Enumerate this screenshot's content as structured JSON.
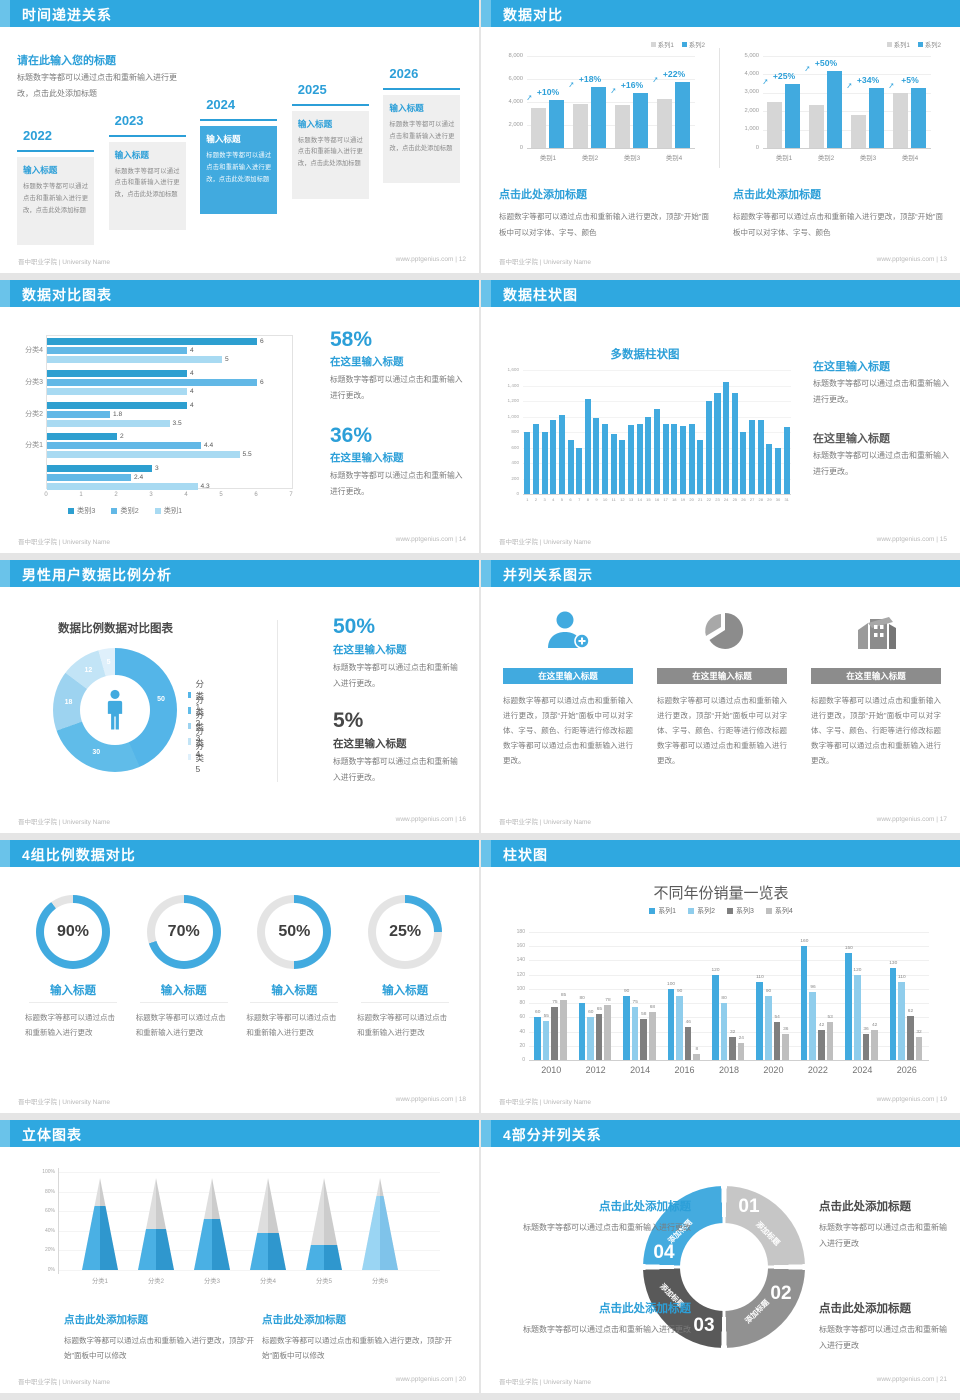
{
  "footer": {
    "org": "晋中职业学院 | University Name",
    "site": "www.pptgenius.com"
  },
  "slides": {
    "timeline": {
      "header": "时间递进关系",
      "footer_right": "www.pptgenius.com | 12",
      "page_no": "12",
      "intro_title": "请在此输入您的标题",
      "intro_text": "标题数字等都可以通过点击和重新输入进行更改，点击此处添加标题",
      "card_title": "输入标题",
      "card_text": "标题数字等都可以通过点击和重新输入进行更改，点击此处添加标题",
      "years": [
        "2022",
        "2023",
        "2024",
        "2025",
        "2026"
      ],
      "highlight_index": 2
    },
    "compare": {
      "header": "数据对比",
      "footer_right": "www.pptgenius.com | 13",
      "page_no": "13",
      "legend": [
        "系列1",
        "系列2"
      ],
      "charts": [
        {
          "type": "bar",
          "categories": [
            "类别1",
            "类别2",
            "类别3",
            "类别4"
          ],
          "ymax": 8000,
          "yticks": [
            "8,000",
            "6,000",
            "4,000",
            "2,000",
            "0"
          ],
          "series": [
            {
              "name": "系列1",
              "values": [
                3500,
                3800,
                3700,
                4300
              ]
            },
            {
              "name": "系列2",
              "values": [
                4200,
                5300,
                4800,
                5700
              ]
            }
          ],
          "growth": [
            "+10%",
            "+18%",
            "+16%",
            "+22%"
          ]
        },
        {
          "type": "bar",
          "categories": [
            "类别1",
            "类别2",
            "类别3",
            "类别4"
          ],
          "ymax": 5000,
          "yticks": [
            "5,000",
            "4,000",
            "3,000",
            "2,000",
            "1,000",
            "0"
          ],
          "series": [
            {
              "name": "系列1",
              "values": [
                2500,
                2350,
                1800,
                3000
              ]
            },
            {
              "name": "系列2",
              "values": [
                3500,
                4200,
                3250,
                3250
              ]
            }
          ],
          "growth": [
            "+25%",
            "+50%",
            "+34%",
            "+5%"
          ]
        }
      ],
      "blocks": [
        {
          "title": "点击此处添加标题",
          "text": "标题数字等都可以通过点击和重新输入进行更改，顶部“开始”面板中可以对字体、字号、颜色"
        },
        {
          "title": "点击此处添加标题",
          "text": "标题数字等都可以通过点击和重新输入进行更改，顶部“开始”面板中可以对字体、字号、颜色"
        }
      ]
    },
    "hbar": {
      "header": "数据对比图表",
      "footer_right": "www.pptgenius.com | 14",
      "page_no": "14",
      "type": "bar-horizontal",
      "groups": [
        "分类4",
        "分类3",
        "分类2",
        "分类1",
        ""
      ],
      "series": [
        {
          "name": "类别3",
          "color": "#2d9fd0",
          "values": [
            6,
            4,
            4,
            2,
            3
          ]
        },
        {
          "name": "类别2",
          "color": "#62b8e6",
          "values": [
            4,
            6,
            1.8,
            4.4,
            2.4
          ]
        },
        {
          "name": "类别1",
          "color": "#a8daf2",
          "values": [
            5,
            4,
            3.5,
            5.5,
            4.3
          ]
        }
      ],
      "xmax": 7,
      "xticks": [
        "0",
        "1",
        "2",
        "3",
        "4",
        "5",
        "6",
        "7"
      ],
      "stats": [
        {
          "pct": "58%",
          "title": "在这里输入标题",
          "text": "标题数字等都可以通过点击和重新输入进行更改。"
        },
        {
          "pct": "36%",
          "title": "在这里输入标题",
          "text": "标题数字等都可以通过点击和重新输入进行更改。"
        }
      ]
    },
    "colbar": {
      "header": "数据柱状图",
      "footer_right": "www.pptgenius.com | 15",
      "page_no": "15",
      "chart_title": "多数据柱状图",
      "type": "bar",
      "ymax": 1600,
      "yticks": [
        "1,600",
        "1,400",
        "1,200",
        "1,000",
        "800",
        "600",
        "400",
        "200",
        "0"
      ],
      "labels": [
        "1",
        "2",
        "3",
        "4",
        "5",
        "6",
        "7",
        "8",
        "9",
        "10",
        "11",
        "12",
        "13",
        "14",
        "15",
        "16",
        "17",
        "18",
        "19",
        "20",
        "21",
        "22",
        "23",
        "24",
        "25",
        "26",
        "27",
        "28",
        "29",
        "30",
        "31"
      ],
      "values": [
        800,
        900,
        800,
        950,
        1020,
        700,
        600,
        1220,
        980,
        900,
        780,
        700,
        890,
        900,
        990,
        1100,
        900,
        900,
        880,
        900,
        700,
        1200,
        1300,
        1450,
        1300,
        800,
        960,
        960,
        650,
        600,
        870
      ],
      "stats": [
        {
          "title": "在这里输入标题",
          "text": "标题数字等都可以通过点击和重新输入进行更改。",
          "accent": true
        },
        {
          "title": "在这里输入标题",
          "text": "标题数字等都可以通过点击和重新输入进行更改。",
          "accent": false
        }
      ]
    },
    "donut": {
      "header": "男性用户数据比例分析",
      "footer_right": "www.pptgenius.com | 16",
      "page_no": "16",
      "chart_title": "数据比例数据对比图表",
      "type": "pie",
      "values": [
        50,
        30,
        18,
        12,
        5
      ],
      "colors": [
        "#54b5e8",
        "#60bce9",
        "#9dd3f0",
        "#c2e4f6",
        "#dff0fb"
      ],
      "legend": [
        "分类1",
        "分类2",
        "分类3",
        "分类4",
        "分类5"
      ],
      "stats": [
        {
          "pct": "50%",
          "title": "在这里输入标题",
          "text": "标题数字等都可以通过点击和重新输入进行更改。",
          "accent": true
        },
        {
          "pct": "5%",
          "title": "在这里输入标题",
          "text": "标题数字等都可以通过点击和重新输入进行更改。",
          "accent": false
        }
      ]
    },
    "parallel3": {
      "header": "并列关系图示",
      "footer_right": "www.pptgenius.com | 17",
      "page_no": "17",
      "columns": [
        {
          "icon": "person-add-icon",
          "banner": "在这里输入标题",
          "accent": true,
          "text": "标题数字等都可以通过点击和重新输入进行更改，顶部“开始”面板中可以对字体、字号、颜色、行距等进行修改标题数字等都可以通过点击和重新输入进行更改。"
        },
        {
          "icon": "pie-chart-icon",
          "banner": "在这里输入标题",
          "accent": false,
          "text": "标题数字等都可以通过点击和重新输入进行更改，顶部“开始”面板中可以对字体、字号、颜色、行距等进行修改标题数字等都可以通过点击和重新输入进行更改。"
        },
        {
          "icon": "building-icon",
          "banner": "在这里输入标题",
          "accent": false,
          "text": "标题数字等都可以通过点击和重新输入进行更改，顶部“开始”面板中可以对字体、字号、颜色、行距等进行修改标题数字等都可以通过点击和重新输入进行更改。"
        }
      ]
    },
    "rings": {
      "header": "4组比例数据对比",
      "footer_right": "www.pptgenius.com | 18",
      "page_no": "18",
      "items": [
        {
          "pct": 90,
          "label": "90%",
          "title": "输入标题",
          "text": "标题数字等都可以通过点击和重新输入进行更改"
        },
        {
          "pct": 70,
          "label": "70%",
          "title": "输入标题",
          "text": "标题数字等都可以通过点击和重新输入进行更改"
        },
        {
          "pct": 50,
          "label": "50%",
          "title": "输入标题",
          "text": "标题数字等都可以通过点击和重新输入进行更改"
        },
        {
          "pct": 25,
          "label": "25%",
          "title": "输入标题",
          "text": "标题数字等都可以通过点击和重新输入进行更改"
        }
      ]
    },
    "grouped": {
      "header": "柱状图",
      "footer_right": "www.pptgenius.com | 19",
      "page_no": "19",
      "chart_title": "不同年份销量一览表",
      "type": "bar",
      "ymax": 180,
      "yticks": [
        "180",
        "160",
        "140",
        "120",
        "100",
        "80",
        "60",
        "40",
        "20",
        "0"
      ],
      "categories": [
        "2010",
        "2012",
        "2014",
        "2016",
        "2018",
        "2020",
        "2022",
        "2024",
        "2026"
      ],
      "series": [
        {
          "name": "系列1",
          "color": "#41aadf",
          "values": [
            60,
            80,
            90,
            100,
            120,
            110,
            160,
            150,
            130
          ]
        },
        {
          "name": "系列2",
          "color": "#8fcdec",
          "values": [
            55,
            60,
            75,
            90,
            80,
            90,
            96,
            120,
            110
          ]
        },
        {
          "name": "系列3",
          "color": "#7f7f7f",
          "values": [
            75,
            65,
            58,
            46,
            32,
            54,
            42,
            36,
            62
          ]
        },
        {
          "name": "系列4",
          "color": "#bfbfbf",
          "values": [
            85,
            78,
            68,
            8,
            24,
            36,
            53,
            42,
            32
          ]
        }
      ]
    },
    "cones": {
      "header": "立体图表",
      "footer_right": "www.pptgenius.com | 20",
      "page_no": "20",
      "type": "cone",
      "categories": [
        "分类1",
        "分类2",
        "分类3",
        "分类4",
        "分类5",
        "分类6"
      ],
      "percents": [
        70,
        45,
        55,
        40,
        27,
        80
      ],
      "yticks": [
        "100%",
        "80%",
        "60%",
        "40%",
        "20%",
        "0%"
      ],
      "blocks": [
        {
          "title": "点击此处添加标题",
          "text": "标题数字等都可以通过点击和重新输入进行更改，顶部“开始”面板中可以修改"
        },
        {
          "title": "点击此处添加标题",
          "text": "标题数字等都可以通过点击和重新输入进行更改，顶部“开始”面板中可以修改"
        }
      ]
    },
    "parts4": {
      "header": "4部分并列关系",
      "footer_right": "www.pptgenius.com | 21",
      "page_no": "21",
      "numbers": [
        "01",
        "02",
        "03",
        "04"
      ],
      "segment_label": "添加标题",
      "segment_colors": [
        "#c6c6c6",
        "#919191",
        "#595959",
        "#44abdf"
      ],
      "blocks": [
        {
          "title": "点击此处添加标题",
          "text": "标题数字等都可以通过点击和重新输入进行更改",
          "accent": true
        },
        {
          "title": "点击此处添加标题",
          "text": "标题数字等都可以通过点击和重新输入进行更改",
          "accent": false
        },
        {
          "title": "点击此处添加标题",
          "text": "标题数字等都可以通过点击和重新输入进行更改",
          "accent": true
        },
        {
          "title": "点击此处添加标题",
          "text": "标题数字等都可以通过点击和重新输入进行更改",
          "accent": false
        }
      ]
    }
  }
}
